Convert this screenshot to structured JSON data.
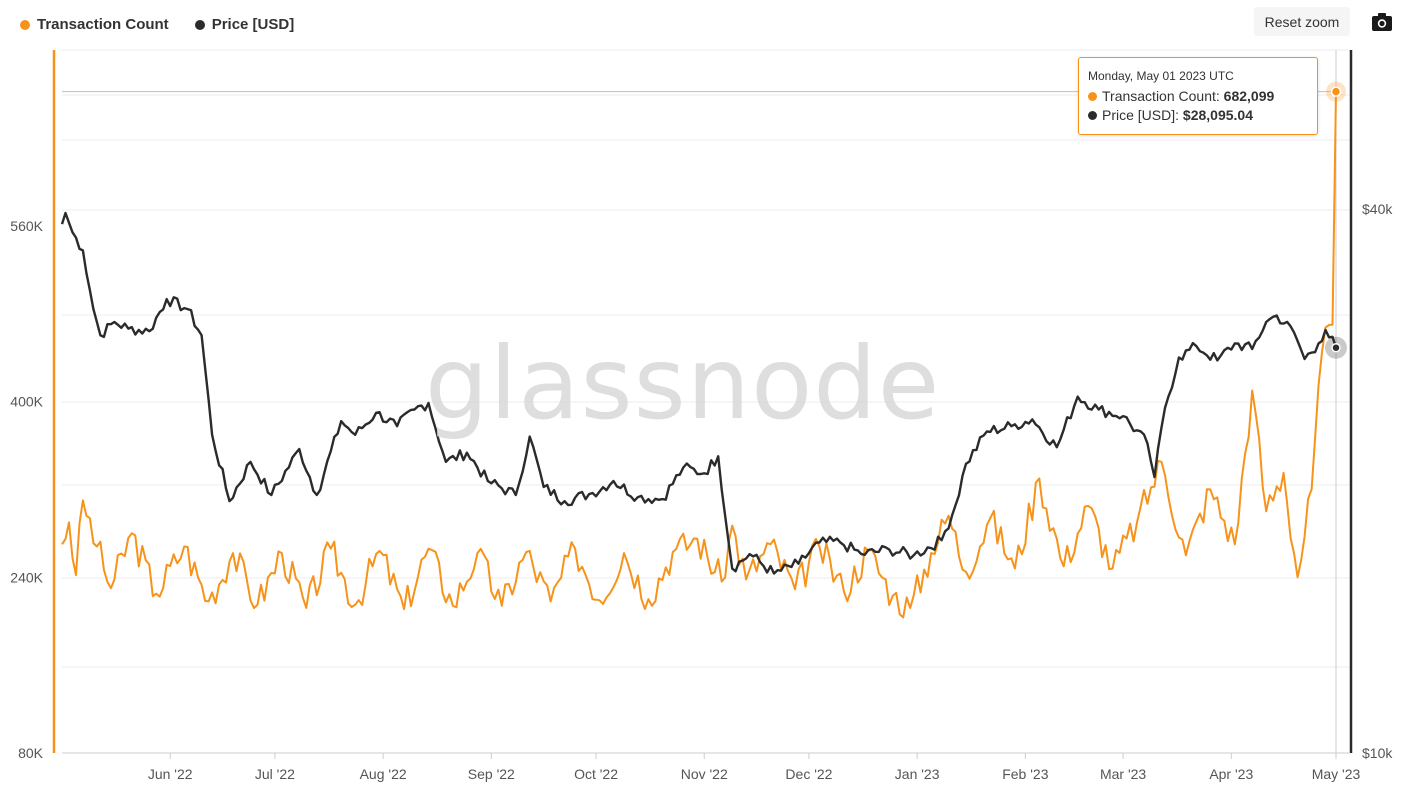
{
  "legend": [
    {
      "label": "Transaction Count",
      "color": "#f7931a"
    },
    {
      "label": "Price [USD]",
      "color": "#2b2b2b"
    }
  ],
  "toolbar": {
    "reset_zoom": "Reset zoom",
    "camera_icon": "camera-icon"
  },
  "watermark": "glassnode",
  "tooltip": {
    "date": "Monday, May 01 2023 UTC",
    "tx_label": "Transaction Count",
    "tx_value": "682,099",
    "price_label": "Price [USD]",
    "price_value": "$28,095.04"
  },
  "chart_data": {
    "type": "line",
    "x_ticks": [
      "Jun '22",
      "Jul '22",
      "Aug '22",
      "Sep '22",
      "Oct '22",
      "Nov '22",
      "Dec '22",
      "Jan '23",
      "Feb '23",
      "Mar '23",
      "Apr '23",
      "May '23"
    ],
    "y_left_ticks": [
      "80K",
      "240K",
      "400K",
      "560K"
    ],
    "y_left_values": [
      80000,
      240000,
      400000,
      560000
    ],
    "y_left_range": [
      80000,
      720000
    ],
    "y_right_ticks": [
      "$10k",
      "$40k"
    ],
    "y_right_values": [
      10000,
      40000
    ],
    "y_right_scale": "log",
    "y_right_range": [
      10000,
      60000
    ],
    "date_range": [
      "2022-05-01",
      "2023-05-01"
    ],
    "series": [
      {
        "name": "Transaction Count",
        "color": "#f7931a",
        "axis": "left",
        "keypoints": [
          [
            "2022-05-01",
            270000
          ],
          [
            "2022-05-03",
            290000
          ],
          [
            "2022-05-05",
            242000
          ],
          [
            "2022-05-07",
            310000
          ],
          [
            "2022-05-11",
            268000
          ],
          [
            "2022-05-15",
            230000
          ],
          [
            "2022-05-21",
            280000
          ],
          [
            "2022-05-28",
            225000
          ],
          [
            "2022-06-05",
            268000
          ],
          [
            "2022-06-12",
            218000
          ],
          [
            "2022-06-19",
            262000
          ],
          [
            "2022-06-26",
            215000
          ],
          [
            "2022-07-03",
            262000
          ],
          [
            "2022-07-10",
            212000
          ],
          [
            "2022-07-17",
            266000
          ],
          [
            "2022-07-24",
            215000
          ],
          [
            "2022-07-31",
            264000
          ],
          [
            "2022-08-07",
            211000
          ],
          [
            "2022-08-14",
            266000
          ],
          [
            "2022-08-21",
            214000
          ],
          [
            "2022-08-28",
            262000
          ],
          [
            "2022-09-04",
            214000
          ],
          [
            "2022-09-11",
            263000
          ],
          [
            "2022-09-18",
            218000
          ],
          [
            "2022-09-25",
            266000
          ],
          [
            "2022-10-02",
            219000
          ],
          [
            "2022-10-09",
            262000
          ],
          [
            "2022-10-16",
            220000
          ],
          [
            "2022-10-23",
            263000
          ],
          [
            "2022-10-30",
            275000
          ],
          [
            "2022-11-06",
            236000
          ],
          [
            "2022-11-09",
            287000
          ],
          [
            "2022-11-13",
            238000
          ],
          [
            "2022-11-20",
            270000
          ],
          [
            "2022-11-27",
            229000
          ],
          [
            "2022-12-04",
            268000
          ],
          [
            "2022-12-11",
            227000
          ],
          [
            "2022-12-18",
            264000
          ],
          [
            "2022-12-25",
            223000
          ],
          [
            "2022-12-30",
            212000
          ],
          [
            "2023-01-05",
            262000
          ],
          [
            "2023-01-10",
            296000
          ],
          [
            "2023-01-15",
            245000
          ],
          [
            "2023-01-22",
            294000
          ],
          [
            "2023-01-29",
            248000
          ],
          [
            "2023-02-05",
            330000
          ],
          [
            "2023-02-12",
            250000
          ],
          [
            "2023-02-19",
            305000
          ],
          [
            "2023-02-26",
            248000
          ],
          [
            "2023-03-05",
            290000
          ],
          [
            "2023-03-12",
            345000
          ],
          [
            "2023-03-19",
            260000
          ],
          [
            "2023-03-26",
            320000
          ],
          [
            "2023-04-02",
            270000
          ],
          [
            "2023-04-07",
            410000
          ],
          [
            "2023-04-11",
            300000
          ],
          [
            "2023-04-16",
            335000
          ],
          [
            "2023-04-20",
            240000
          ],
          [
            "2023-04-24",
            320000
          ],
          [
            "2023-04-27",
            445000
          ],
          [
            "2023-04-30",
            470000
          ],
          [
            "2023-05-01",
            682099
          ]
        ]
      },
      {
        "name": "Price [USD]",
        "color": "#2b2b2b",
        "axis": "right",
        "keypoints": [
          [
            "2022-05-01",
            38500
          ],
          [
            "2022-05-02",
            39600
          ],
          [
            "2022-05-04",
            37700
          ],
          [
            "2022-05-07",
            36000
          ],
          [
            "2022-05-10",
            31000
          ],
          [
            "2022-05-12",
            29000
          ],
          [
            "2022-05-16",
            30000
          ],
          [
            "2022-05-20",
            29500
          ],
          [
            "2022-05-26",
            29300
          ],
          [
            "2022-05-31",
            31800
          ],
          [
            "2022-06-06",
            31000
          ],
          [
            "2022-06-10",
            29000
          ],
          [
            "2022-06-13",
            22500
          ],
          [
            "2022-06-18",
            19000
          ],
          [
            "2022-06-24",
            21000
          ],
          [
            "2022-06-30",
            19300
          ],
          [
            "2022-07-08",
            21700
          ],
          [
            "2022-07-13",
            19300
          ],
          [
            "2022-07-20",
            23300
          ],
          [
            "2022-07-24",
            22500
          ],
          [
            "2022-07-30",
            23800
          ],
          [
            "2022-08-05",
            23000
          ],
          [
            "2022-08-10",
            24000
          ],
          [
            "2022-08-14",
            24400
          ],
          [
            "2022-08-19",
            21000
          ],
          [
            "2022-08-25",
            21500
          ],
          [
            "2022-08-31",
            20000
          ],
          [
            "2022-09-08",
            19300
          ],
          [
            "2022-09-12",
            22400
          ],
          [
            "2022-09-16",
            19700
          ],
          [
            "2022-09-22",
            19000
          ],
          [
            "2022-09-30",
            19400
          ],
          [
            "2022-10-06",
            20000
          ],
          [
            "2022-10-13",
            19200
          ],
          [
            "2022-10-20",
            19100
          ],
          [
            "2022-10-26",
            20700
          ],
          [
            "2022-11-01",
            20400
          ],
          [
            "2022-11-05",
            21300
          ],
          [
            "2022-11-09",
            16000
          ],
          [
            "2022-11-14",
            16600
          ],
          [
            "2022-11-21",
            15800
          ],
          [
            "2022-11-28",
            16200
          ],
          [
            "2022-12-04",
            17100
          ],
          [
            "2022-12-10",
            17100
          ],
          [
            "2022-12-16",
            16600
          ],
          [
            "2022-12-24",
            16800
          ],
          [
            "2022-12-31",
            16550
          ],
          [
            "2023-01-08",
            17200
          ],
          [
            "2023-01-12",
            18800
          ],
          [
            "2023-01-15",
            20900
          ],
          [
            "2023-01-21",
            22700
          ],
          [
            "2023-01-28",
            23000
          ],
          [
            "2023-02-03",
            23400
          ],
          [
            "2023-02-10",
            21800
          ],
          [
            "2023-02-16",
            24800
          ],
          [
            "2023-02-22",
            24000
          ],
          [
            "2023-03-01",
            23600
          ],
          [
            "2023-03-08",
            22000
          ],
          [
            "2023-03-10",
            20200
          ],
          [
            "2023-03-13",
            24100
          ],
          [
            "2023-03-17",
            27400
          ],
          [
            "2023-03-22",
            28200
          ],
          [
            "2023-03-28",
            27200
          ],
          [
            "2023-04-02",
            28400
          ],
          [
            "2023-04-07",
            28000
          ],
          [
            "2023-04-11",
            30000
          ],
          [
            "2023-04-14",
            30500
          ],
          [
            "2023-04-19",
            29200
          ],
          [
            "2023-04-22",
            27300
          ],
          [
            "2023-04-26",
            28400
          ],
          [
            "2023-04-28",
            29400
          ],
          [
            "2023-05-01",
            28095
          ]
        ]
      }
    ]
  }
}
